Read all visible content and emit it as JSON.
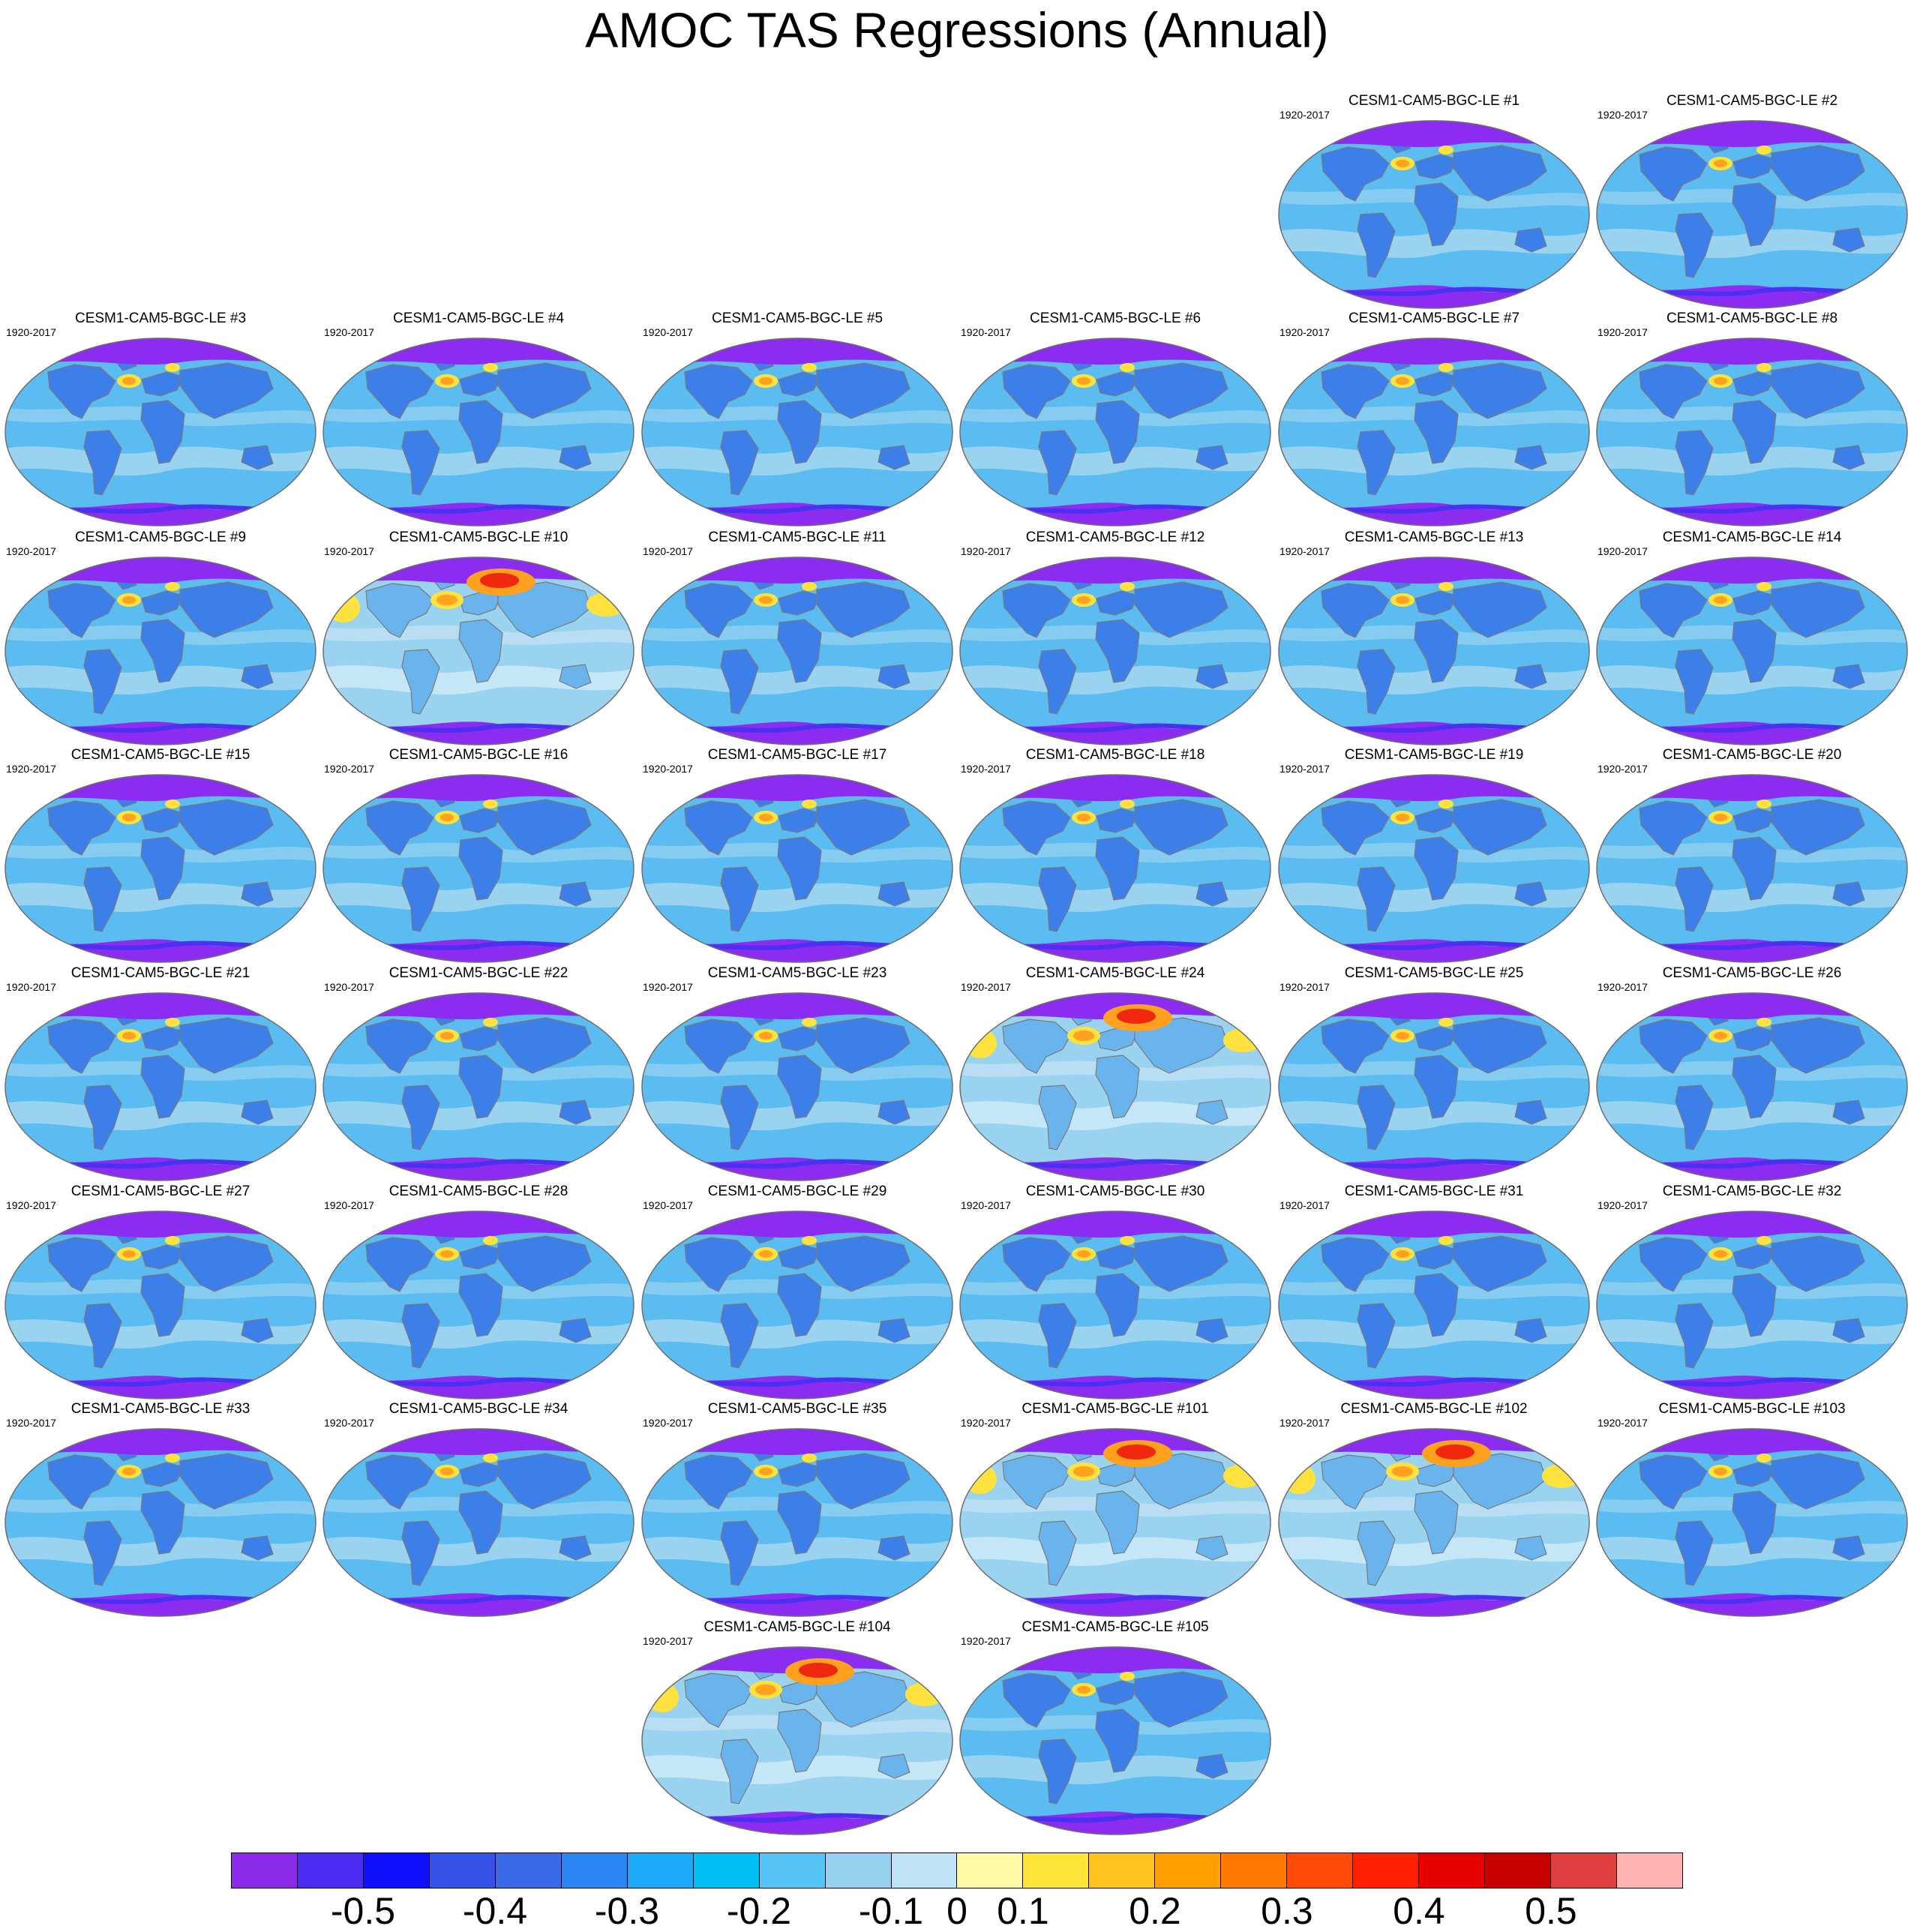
{
  "title": "AMOC TAS Regressions (Annual)",
  "period": "1920-2017",
  "panel_rows": [
    [
      "CESM1-CAM5-BGC-LE #1",
      "CESM1-CAM5-BGC-LE #2"
    ],
    [
      "CESM1-CAM5-BGC-LE #3",
      "CESM1-CAM5-BGC-LE #4",
      "CESM1-CAM5-BGC-LE #5",
      "CESM1-CAM5-BGC-LE #6",
      "CESM1-CAM5-BGC-LE #7",
      "CESM1-CAM5-BGC-LE #8"
    ],
    [
      "CESM1-CAM5-BGC-LE #9",
      "CESM1-CAM5-BGC-LE #10",
      "CESM1-CAM5-BGC-LE #11",
      "CESM1-CAM5-BGC-LE #12",
      "CESM1-CAM5-BGC-LE #13",
      "CESM1-CAM5-BGC-LE #14"
    ],
    [
      "CESM1-CAM5-BGC-LE #15",
      "CESM1-CAM5-BGC-LE #16",
      "CESM1-CAM5-BGC-LE #17",
      "CESM1-CAM5-BGC-LE #18",
      "CESM1-CAM5-BGC-LE #19",
      "CESM1-CAM5-BGC-LE #20"
    ],
    [
      "CESM1-CAM5-BGC-LE #21",
      "CESM1-CAM5-BGC-LE #22",
      "CESM1-CAM5-BGC-LE #23",
      "CESM1-CAM5-BGC-LE #24",
      "CESM1-CAM5-BGC-LE #25",
      "CESM1-CAM5-BGC-LE #26"
    ],
    [
      "CESM1-CAM5-BGC-LE #27",
      "CESM1-CAM5-BGC-LE #28",
      "CESM1-CAM5-BGC-LE #29",
      "CESM1-CAM5-BGC-LE #30",
      "CESM1-CAM5-BGC-LE #31",
      "CESM1-CAM5-BGC-LE #32"
    ],
    [
      "CESM1-CAM5-BGC-LE #33",
      "CESM1-CAM5-BGC-LE #34",
      "CESM1-CAM5-BGC-LE #35",
      "CESM1-CAM5-BGC-LE #101",
      "CESM1-CAM5-BGC-LE #102",
      "CESM1-CAM5-BGC-LE #103"
    ],
    [
      "CESM1-CAM5-BGC-LE #104",
      "CESM1-CAM5-BGC-LE #105"
    ]
  ],
  "warm_panels": [
    "CESM1-CAM5-BGC-LE #10",
    "CESM1-CAM5-BGC-LE #24",
    "CESM1-CAM5-BGC-LE #101",
    "CESM1-CAM5-BGC-LE #102",
    "CESM1-CAM5-BGC-LE #104"
  ],
  "colors": {
    "polar_cold": "#8b2cf0",
    "deep_cold": "#4a30f0",
    "ocean_base": "#5bbcf2",
    "ocean_pale": "#9ad3f0",
    "land_cold": "#3d7fe8",
    "warm_yellow": "#ffe23d",
    "warm_orange": "#ffa01e",
    "warm_red": "#f02810",
    "coast": "#7a7a7a"
  },
  "colorbar": {
    "colors": [
      "#8a2be8",
      "#4b2cf0",
      "#1010ff",
      "#3552e6",
      "#3a6ae8",
      "#2b86f5",
      "#1ea8f8",
      "#00bff5",
      "#56c5f5",
      "#98d0ef",
      "#bfe3f5",
      "#fff9a6",
      "#ffe43a",
      "#ffc21e",
      "#ffa000",
      "#ff7a00",
      "#ff4a08",
      "#ff1e00",
      "#e60000",
      "#c80000",
      "#de3e3e",
      "#ffb3b3"
    ],
    "labels": [
      "-0.5",
      "-0.4",
      "-0.3",
      "-0.2",
      "-0.1",
      "0",
      "0.1",
      "0.2",
      "0.3",
      "0.4",
      "0.5"
    ],
    "label_boundary_index": [
      2,
      4,
      6,
      8,
      10,
      11,
      12,
      14,
      16,
      18,
      20
    ]
  }
}
